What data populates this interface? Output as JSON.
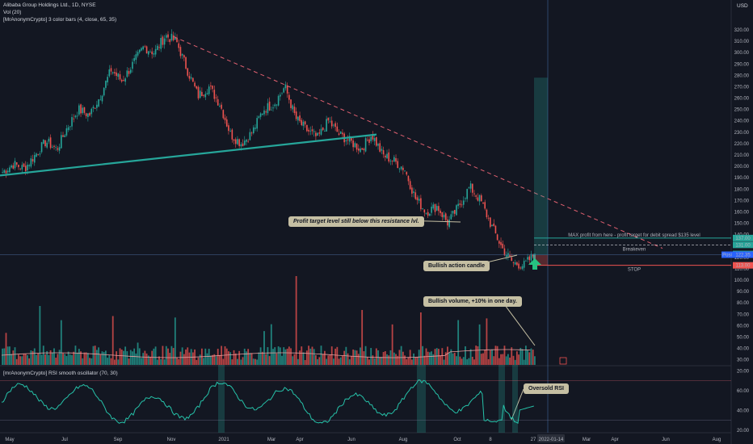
{
  "header": {
    "title": "Alibaba Group Holdings Ltd., 1D, NYSE",
    "vol": "Vol (20)",
    "indicator": "[MrAnonymCrypto] 3 color bars (4, close, 65, 35)",
    "rsi_label": "[mrAnonymCrypto] RSI smooth oscillator (70, 30)",
    "currency": "USD"
  },
  "annotations": {
    "resistance": "Profit target level still below this resistance lvl.",
    "bullish_candle": "Bullish action candle",
    "bullish_volume": "Bullish volume, +10% in one day.",
    "oversold": "Oversold RSI",
    "max_profit": "MAX profit from here - profit target for debit spread $135 level",
    "breakeven": "Breakeven",
    "stop": "STOP"
  },
  "price_labels": {
    "p1": "137.00",
    "p2": "131.00",
    "last": "122.99",
    "pos": "Posi",
    "pos_val": "122.35",
    "stop": "113.00"
  },
  "colors": {
    "up": "#26a69a",
    "down": "#ef5350",
    "trend": "#26a69a",
    "resist": "#e06070",
    "bg": "#131722"
  },
  "chart_data": {
    "type": "candlestick",
    "price_ticks": [
      "320.00",
      "310.00",
      "300.00",
      "290.00",
      "280.00",
      "270.00",
      "260.00",
      "250.00",
      "240.00",
      "230.00",
      "220.00",
      "210.00",
      "200.00",
      "190.00",
      "180.00",
      "170.00",
      "160.00",
      "150.00",
      "140.00",
      "130.00",
      "120.00",
      "110.00",
      "100.00",
      "90.00",
      "80.00",
      "70.00",
      "60.00",
      "50.00",
      "40.00",
      "30.00",
      "20.00"
    ],
    "rsi_ticks": [
      "60.00",
      "40.00",
      "20.00"
    ],
    "x_ticks": [
      "May",
      "Jul",
      "Sep",
      "Nov",
      "2021",
      "Mar",
      "Apr",
      "Jun",
      "Aug",
      "Oct",
      "8",
      "27",
      "2022-01-14",
      "Mar",
      "Apr",
      "Jun",
      "Aug"
    ],
    "close_path": [
      [
        "May",
        195
      ],
      [
        "May",
        202
      ],
      [
        "May",
        198
      ],
      [
        "Jun",
        210
      ],
      [
        "Jun",
        222
      ],
      [
        "Jun",
        215
      ],
      [
        "Jul",
        235
      ],
      [
        "Jul",
        250
      ],
      [
        "Jul",
        245
      ],
      [
        "Aug",
        262
      ],
      [
        "Aug",
        285
      ],
      [
        "Aug",
        275
      ],
      [
        "Sep",
        290
      ],
      [
        "Sep",
        305
      ],
      [
        "Oct",
        300
      ],
      [
        "Oct",
        315
      ],
      [
        "Oct",
        310
      ],
      [
        "Nov",
        285
      ],
      [
        "Nov",
        262
      ],
      [
        "Nov",
        270
      ],
      [
        "Dec",
        255
      ],
      [
        "Dec",
        228
      ],
      [
        "Dec",
        220
      ],
      [
        "2021",
        230
      ],
      [
        "Jan",
        250
      ],
      [
        "Feb",
        255
      ],
      [
        "Feb",
        270
      ],
      [
        "Mar",
        242
      ],
      [
        "Mar",
        232
      ],
      [
        "Apr",
        225
      ],
      [
        "Apr",
        240
      ],
      [
        "May",
        228
      ],
      [
        "May",
        222
      ],
      [
        "Jun",
        215
      ],
      [
        "Jun",
        228
      ],
      [
        "Jul",
        210
      ],
      [
        "Jul",
        205
      ],
      [
        "Aug",
        198
      ],
      [
        "Aug",
        172
      ],
      [
        "Aug",
        160
      ],
      [
        "Sep",
        165
      ],
      [
        "Sep",
        150
      ],
      [
        "Oct",
        165
      ],
      [
        "Oct",
        182
      ],
      [
        "Oct",
        170
      ],
      [
        "Nov",
        148
      ],
      [
        "Nov",
        128
      ],
      [
        "Dec",
        115
      ],
      [
        "Dec",
        113
      ],
      [
        "Dec",
        122.99
      ]
    ],
    "resistance_line": [
      [
        316,
        "Oct"
      ],
      [
        170,
        "Jan"
      ]
    ],
    "trend_line": [
      [
        200,
        "May"
      ],
      [
        230,
        "Jul"
      ]
    ],
    "levels": {
      "max_profit": 137,
      "target": 131,
      "breakeven": 131,
      "last": 122.99,
      "position": 122.35,
      "stop": 113
    },
    "rsi_levels": [
      70,
      30
    ]
  }
}
